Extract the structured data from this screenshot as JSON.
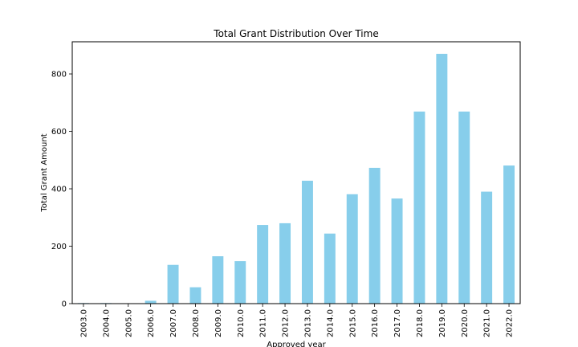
{
  "chart_data": {
    "type": "bar",
    "title": "Total Grant Distribution Over Time",
    "xlabel": "Approved year",
    "ylabel": "Total Grant Amount",
    "categories": [
      "2003.0",
      "2004.0",
      "2005.0",
      "2006.0",
      "2007.0",
      "2008.0",
      "2009.0",
      "2010.0",
      "2011.0",
      "2012.0",
      "2013.0",
      "2014.0",
      "2015.0",
      "2016.0",
      "2017.0",
      "2018.0",
      "2019.0",
      "2020.0",
      "2021.0",
      "2022.0"
    ],
    "series": [
      {
        "values": [
          2,
          2,
          0,
          10,
          135,
          57,
          165,
          148,
          274,
          280,
          428,
          244,
          381,
          473,
          366,
          669,
          870,
          669,
          390,
          481
        ]
      }
    ],
    "yticks": [
      0,
      200,
      400,
      600,
      800
    ],
    "ylim": [
      0,
      912
    ],
    "grid": false,
    "legend": "none",
    "bar_color": "#87ceeb"
  }
}
